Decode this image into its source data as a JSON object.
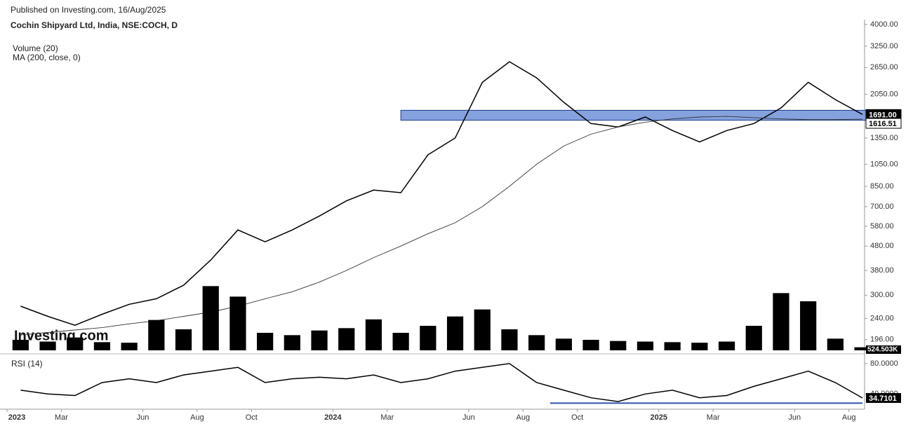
{
  "chart_data": [
    {
      "type": "line",
      "subtitle": "Published on Investing.com, 16/Aug/2025",
      "title": "Cochin Shipyard Ltd, India, NSE:COCH, D",
      "watermark": "Investing.com",
      "log_scale": true,
      "x": [
        "2023-01",
        "2023-02",
        "2023-03",
        "2023-04",
        "2023-05",
        "2023-06",
        "2023-07",
        "2023-08",
        "2023-09",
        "2023-10",
        "2023-11",
        "2023-12",
        "2024-01",
        "2024-02",
        "2024-03",
        "2024-04",
        "2024-05",
        "2024-06",
        "2024-07",
        "2024-08",
        "2024-09",
        "2024-10",
        "2024-11",
        "2024-12",
        "2025-01",
        "2025-02",
        "2025-03",
        "2025-04",
        "2025-05",
        "2025-06",
        "2025-07",
        "2025-08"
      ],
      "xticks": [
        {
          "value": "2023-01",
          "label": "2023"
        },
        {
          "value": "2023-03",
          "label": "Mar"
        },
        {
          "value": "2023-06",
          "label": "Jun"
        },
        {
          "value": "2023-08",
          "label": "Aug"
        },
        {
          "value": "2023-10",
          "label": "Oct"
        },
        {
          "value": "2024-01",
          "label": "2024"
        },
        {
          "value": "2024-03",
          "label": "Mar"
        },
        {
          "value": "2024-06",
          "label": "Jun"
        },
        {
          "value": "2024-08",
          "label": "Aug"
        },
        {
          "value": "2024-10",
          "label": "Oct"
        },
        {
          "value": "2025-01",
          "label": "2025"
        },
        {
          "value": "2025-03",
          "label": "Mar"
        },
        {
          "value": "2025-06",
          "label": "Jun"
        },
        {
          "value": "2025-08",
          "label": "Aug"
        }
      ],
      "ylim": [
        177,
        4190
      ],
      "yticks": [
        {
          "value": 4000,
          "label": "4000.00"
        },
        {
          "value": 3250,
          "label": "3250.00"
        },
        {
          "value": 2650,
          "label": "2650.00"
        },
        {
          "value": 2050,
          "label": "2050.00"
        },
        {
          "value": 1350,
          "label": "1350.00"
        },
        {
          "value": 1050,
          "label": "1050.00"
        },
        {
          "value": 850,
          "label": "850.00"
        },
        {
          "value": 700,
          "label": "700.00"
        },
        {
          "value": 580,
          "label": "580.00"
        },
        {
          "value": 480,
          "label": "480.00"
        },
        {
          "value": 380,
          "label": "380.00"
        },
        {
          "value": 300,
          "label": "300.00"
        },
        {
          "value": 240,
          "label": "240.00"
        },
        {
          "value": 196,
          "label": "196.00"
        }
      ],
      "series": [
        {
          "color": "#000000",
          "last_label": "1691.00",
          "values": [
            270,
            245,
            225,
            250,
            275,
            290,
            330,
            420,
            560,
            500,
            560,
            640,
            740,
            820,
            800,
            1150,
            1350,
            2300,
            2800,
            2400,
            1900,
            1550,
            1500,
            1650,
            1450,
            1300,
            1450,
            1550,
            1800,
            2300,
            1950,
            1691
          ]
        },
        {
          "name": "MA (200, close, 0)",
          "color": "#333333",
          "values": [
            205,
            210,
            215,
            220,
            228,
            235,
            245,
            255,
            270,
            290,
            310,
            340,
            380,
            430,
            480,
            540,
            600,
            700,
            850,
            1050,
            1250,
            1400,
            1500,
            1570,
            1620,
            1650,
            1660,
            1640,
            1620,
            1610,
            1610,
            1616.51
          ]
        }
      ],
      "band": {
        "ylim": [
          1600,
          1760
        ],
        "x": [
          "2024-03",
          "2025-08"
        ],
        "color": "#7090d8"
      }
    },
    {
      "type": "bar",
      "name": "Volume (20)",
      "color": "#000000",
      "ylim": [
        0,
        12000
      ],
      "last_label": "524.503K",
      "values": [
        1800,
        1500,
        2200,
        1400,
        1300,
        5200,
        3600,
        11000,
        9200,
        3000,
        2600,
        3400,
        3800,
        5300,
        3000,
        4200,
        5800,
        7000,
        3600,
        2600,
        2000,
        1800,
        1600,
        1500,
        1400,
        1300,
        1500,
        4200,
        9800,
        8400,
        2000,
        524.503
      ]
    },
    {
      "type": "line",
      "title": "RSI (14)",
      "color": "#000000",
      "ylim": [
        20,
        90
      ],
      "yticks": [
        {
          "value": 80,
          "label": "80.0000"
        },
        {
          "value": 40,
          "label": "40.0000"
        }
      ],
      "values": [
        45,
        40,
        38,
        55,
        60,
        55,
        65,
        70,
        75,
        55,
        60,
        62,
        60,
        65,
        55,
        60,
        70,
        75,
        80,
        55,
        45,
        35,
        30,
        40,
        45,
        35,
        38,
        50,
        60,
        70,
        55,
        34.7101
      ],
      "level": {
        "value": 28,
        "x": [
          "2024-09",
          "2025-08"
        ],
        "color": "#3050b0"
      }
    }
  ]
}
